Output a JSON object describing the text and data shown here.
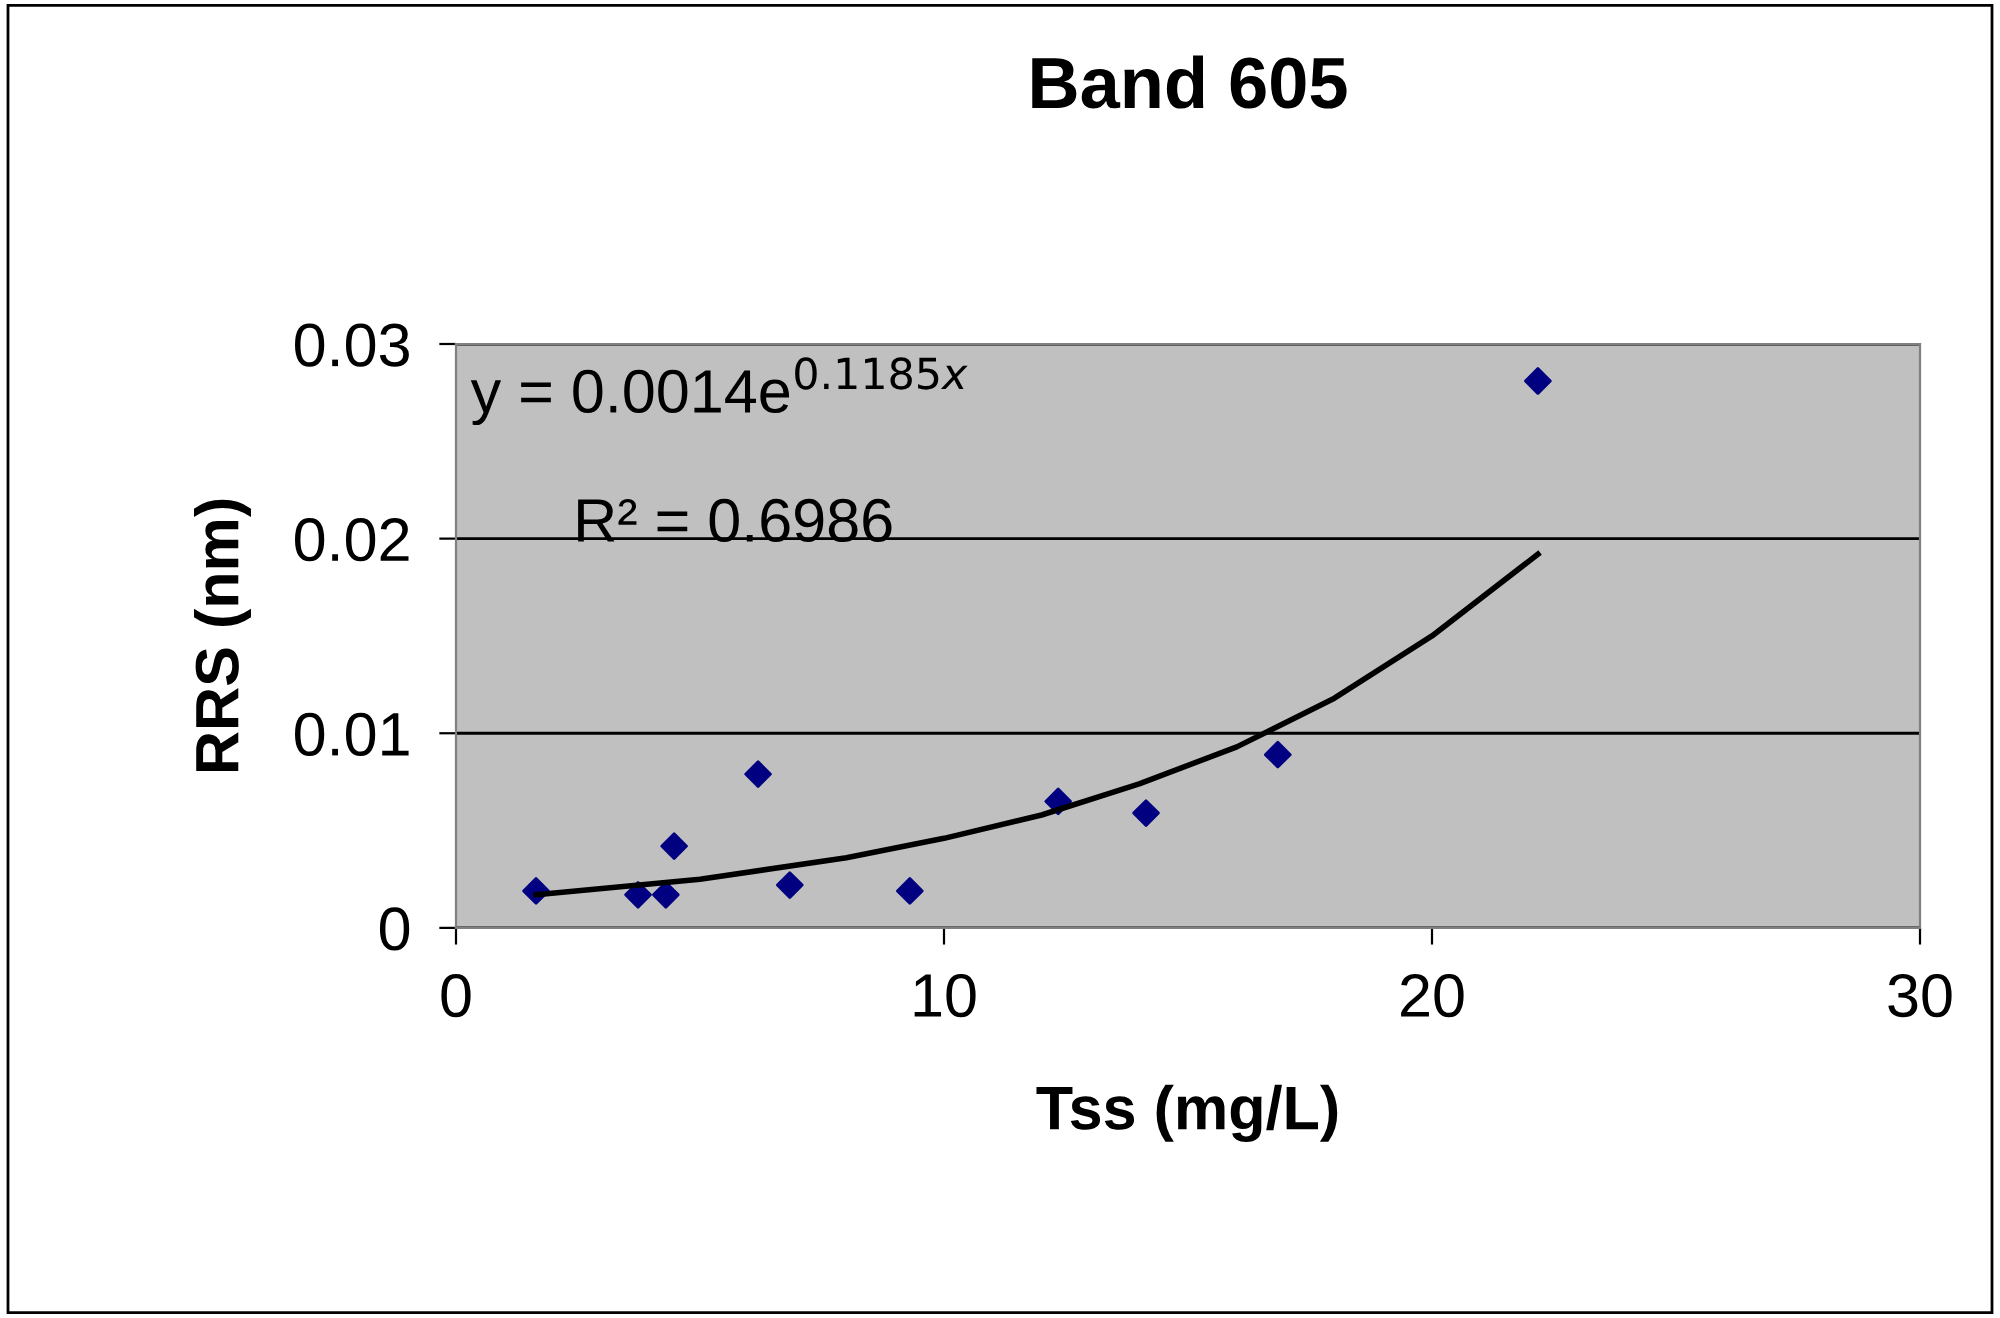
{
  "chart_data": {
    "type": "scatter",
    "title": "Band 605",
    "xlabel": "Tss (mg/L)",
    "ylabel": "RRS (nm)",
    "xlim": [
      0,
      30
    ],
    "xticks": [
      0,
      10,
      20,
      30
    ],
    "ylim": [
      0,
      0.03
    ],
    "yticks": [
      0,
      0.01,
      0.02,
      0.03
    ],
    "grid": "y",
    "marker": "diamond",
    "annotations": [
      "y = 0.0014e$^{0.1185x}$",
      "R² = 0.6986"
    ],
    "series": [
      {
        "color": "#000080",
        "x": [
          1.64,
          3.73,
          4.3,
          4.47,
          6.19,
          6.84,
          9.3,
          12.34,
          14.14,
          16.84,
          22.17
        ],
        "values": [
          0.0019,
          0.0017,
          0.0017,
          0.0042,
          0.0079,
          0.0022,
          0.0019,
          0.0065,
          0.0059,
          0.0089,
          0.0281
        ]
      },
      {
        "type": "line",
        "marker": "none",
        "color": "#000000",
        "x": [
          1.64,
          5,
          8,
          10,
          12,
          14,
          16,
          18,
          20,
          22.17
        ],
        "values": [
          0.0017,
          0.0025,
          0.0036,
          0.0046,
          0.0058,
          0.0074,
          0.0093,
          0.0118,
          0.015,
          0.0192
        ]
      }
    ]
  }
}
